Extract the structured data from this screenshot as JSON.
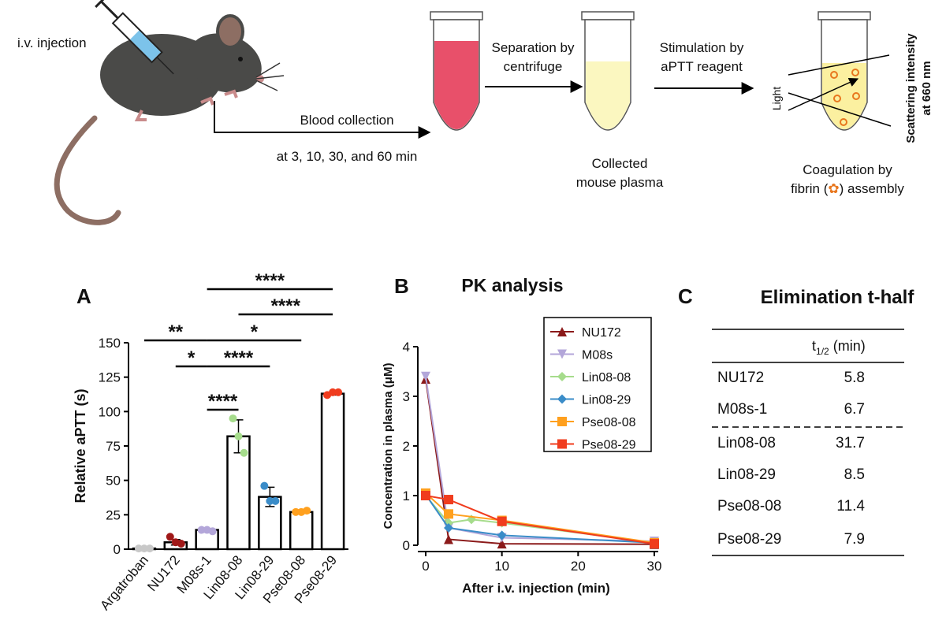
{
  "schematic": {
    "injection": "i.v. injection",
    "collection": "Blood collection",
    "times": "at 3, 10, 30, and 60 min",
    "separation": [
      "Separation by",
      "centrifuge"
    ],
    "plasma": [
      "Collected",
      "mouse plasma"
    ],
    "stimulation": [
      "Stimulation by",
      "aPTT reagent"
    ],
    "light": "Light",
    "scattering": [
      "Scattering intensity",
      "at 660 nm"
    ],
    "coagulation": [
      "Coagulation by",
      "fibrin (",
      ") assembly"
    ]
  },
  "chart_data": [
    {
      "type": "bar",
      "panel": "A",
      "ylabel": "Relative aPTT (s)",
      "categories": [
        "Argatroban",
        "NU172",
        "M08s-1",
        "Lin08-08",
        "Lin08-29",
        "Pse08-08",
        "Pse08-29"
      ],
      "values": [
        0.5,
        5,
        14,
        82,
        38,
        27,
        113
      ],
      "errors": [
        0.3,
        2,
        1,
        12,
        7,
        1,
        1
      ],
      "points": [
        [
          0.5,
          0.5,
          0.5
        ],
        [
          9,
          5,
          4
        ],
        [
          14,
          14,
          13
        ],
        [
          95,
          82,
          70
        ],
        [
          46,
          35,
          35
        ],
        [
          27,
          27,
          28
        ],
        [
          112,
          114,
          114
        ]
      ],
      "colors": [
        "#c8c8c8",
        "#a01818",
        "#b3a6d9",
        "#a6dc8c",
        "#3a8cc8",
        "#ffa01e",
        "#f03c1e"
      ],
      "ylim": [
        0,
        150
      ],
      "yticks": [
        0,
        25,
        50,
        75,
        100,
        125,
        150
      ],
      "brackets": [
        {
          "start": "M08s-1",
          "end": "Pse08-29",
          "label": "****"
        },
        {
          "start": "Lin08-08",
          "end": "Pse08-29",
          "label": "****"
        },
        {
          "start": "Argatroban",
          "end": "M08s-1",
          "label": "**"
        },
        {
          "start": "M08s-1",
          "end": "Pse08-08",
          "label": "*"
        },
        {
          "start": "NU172",
          "end": "M08s-1",
          "label": "*"
        },
        {
          "start": "M08s-1",
          "end": "Lin08-29",
          "label": "****"
        },
        {
          "start": "M08s-1",
          "end": "Lin08-08",
          "label": "****"
        }
      ]
    },
    {
      "type": "line",
      "panel": "B",
      "title": "PK analysis",
      "xlabel": "After i.v. injection (min)",
      "ylabel": "Concentration in plasma (μM)",
      "xlim": [
        0,
        30
      ],
      "xticks": [
        0,
        10,
        20,
        30
      ],
      "ylim": [
        0,
        4
      ],
      "yticks": [
        0,
        1,
        2,
        3,
        4
      ],
      "series": [
        {
          "name": "NU172",
          "color": "#8b1a1a",
          "marker": "triangle-up",
          "x": [
            0,
            3,
            10,
            30
          ],
          "values": [
            3.35,
            0.12,
            0.03,
            0.02
          ]
        },
        {
          "name": "M08s",
          "color": "#b3a6d9",
          "marker": "triangle-down",
          "x": [
            0,
            3,
            10,
            30
          ],
          "values": [
            3.4,
            0.35,
            0.15,
            0.08
          ]
        },
        {
          "name": "Lin08-08",
          "color": "#a6dc8c",
          "marker": "diamond",
          "x": [
            0,
            3,
            6,
            10,
            30
          ],
          "values": [
            1.0,
            0.45,
            0.52,
            0.45,
            0.05
          ]
        },
        {
          "name": "Lin08-29",
          "color": "#3a8cc8",
          "marker": "diamond",
          "x": [
            0,
            3,
            10,
            30
          ],
          "values": [
            1.02,
            0.35,
            0.2,
            0.05
          ]
        },
        {
          "name": "Pse08-08",
          "color": "#ffa01e",
          "marker": "square",
          "x": [
            0,
            3,
            10,
            30
          ],
          "values": [
            1.05,
            0.63,
            0.5,
            0.05
          ]
        },
        {
          "name": "Pse08-29",
          "color": "#f03c1e",
          "marker": "square",
          "x": [
            0,
            3,
            10,
            30
          ],
          "values": [
            1.0,
            0.92,
            0.48,
            0.03
          ]
        }
      ]
    }
  ],
  "table": {
    "panel": "C",
    "title": "Elimination t-half",
    "header": [
      "t",
      "1/2",
      " (min)"
    ],
    "rows": [
      [
        "NU172",
        5.8
      ],
      [
        "M08s-1",
        6.7
      ],
      [
        "Lin08-08",
        31.7
      ],
      [
        "Lin08-29",
        8.5
      ],
      [
        "Pse08-08",
        11.4
      ],
      [
        "Pse08-29",
        7.9
      ]
    ]
  }
}
